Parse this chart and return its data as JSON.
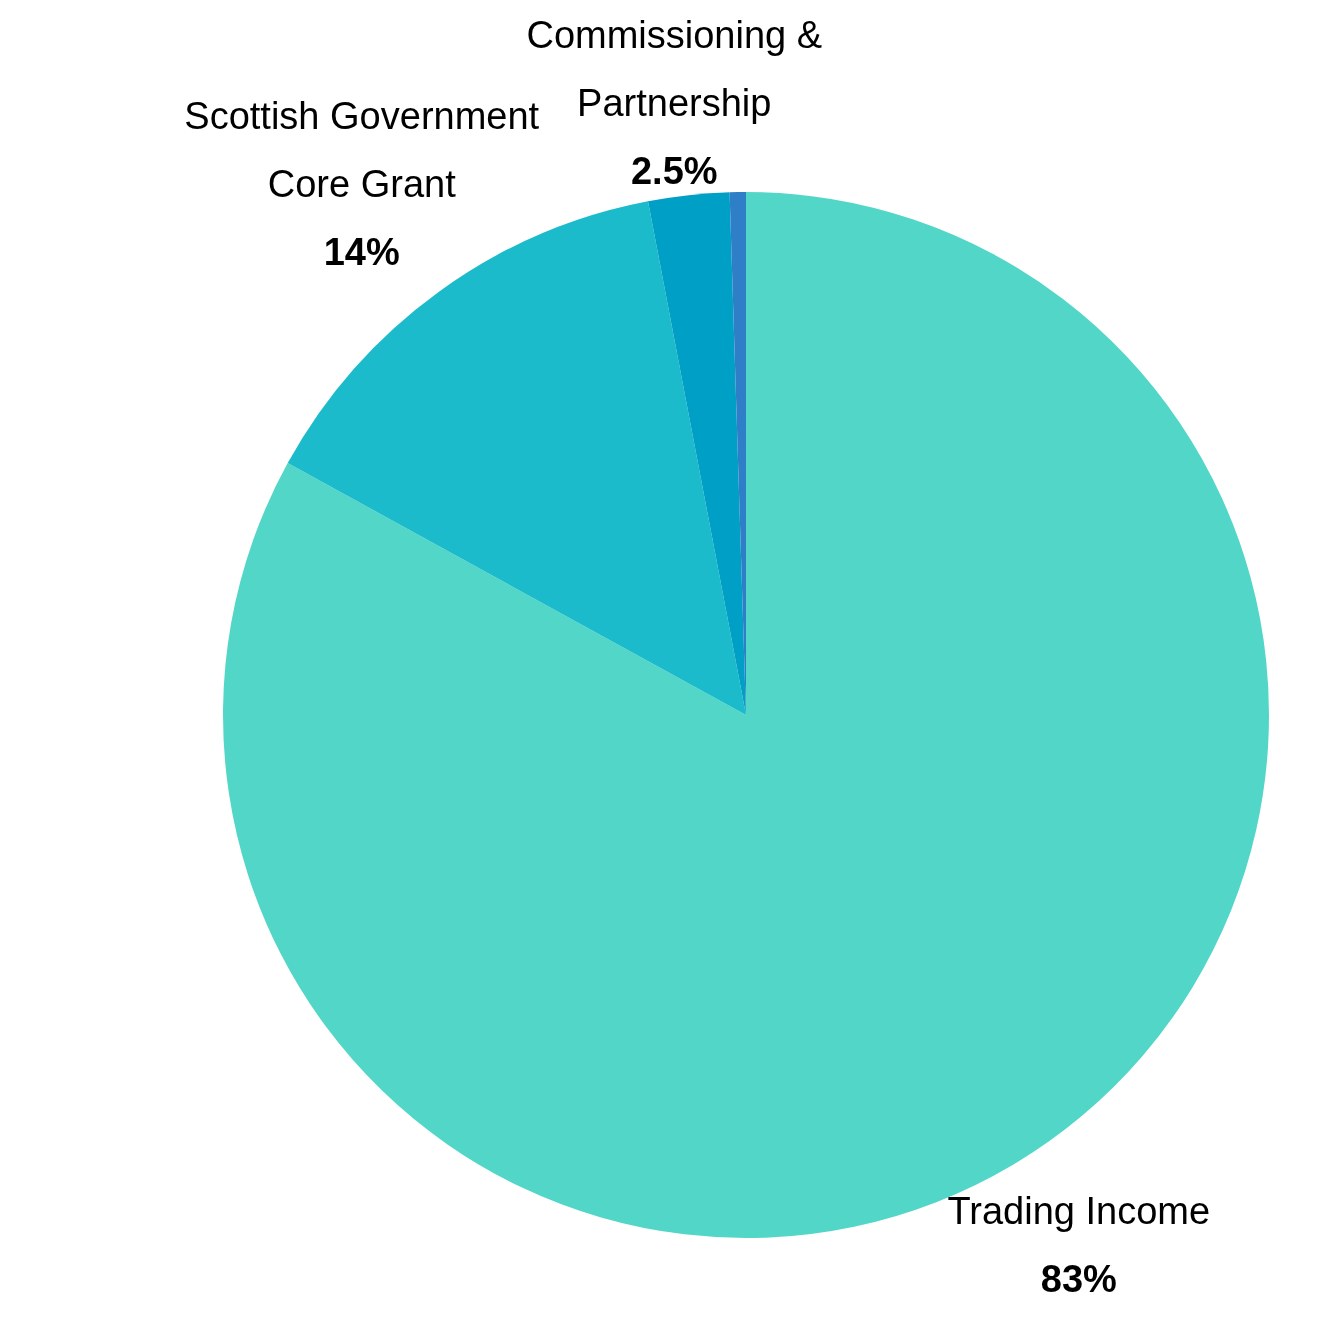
{
  "chart_data": {
    "type": "pie",
    "categories": [
      "Trading Income",
      "Scottish Government Core Grant",
      "Commissioning & Partnership",
      null
    ],
    "values": [
      83,
      14,
      2.5,
      0.5
    ],
    "value_labels": [
      "83%",
      "14%",
      "2.5%",
      null
    ],
    "colors": [
      "#52d6c8",
      "#1bbbcb",
      "#00a0c6",
      "#2f7fc8"
    ],
    "legend": false
  }
}
